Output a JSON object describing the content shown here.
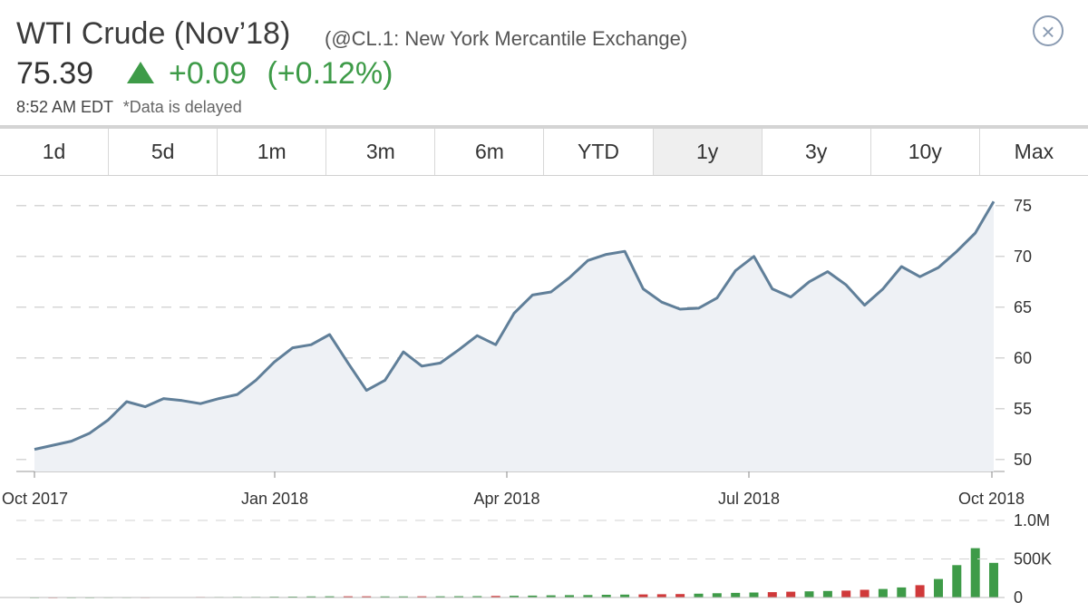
{
  "header": {
    "title": "WTI Crude (Nov’18)",
    "exchange": "(@CL.1: New York Mercantile Exchange)",
    "price": "75.39",
    "change": "+0.09",
    "change_pct": "(+0.12%)",
    "timestamp": "8:52 AM EDT",
    "delayed_note": "*Data is delayed",
    "up_color": "#3e9b48",
    "close_icon": "close-icon"
  },
  "tabs": [
    {
      "label": "1d"
    },
    {
      "label": "5d"
    },
    {
      "label": "1m"
    },
    {
      "label": "3m"
    },
    {
      "label": "6m"
    },
    {
      "label": "YTD"
    },
    {
      "label": "1y",
      "active": true
    },
    {
      "label": "3y"
    },
    {
      "label": "10y"
    },
    {
      "label": "Max"
    }
  ],
  "chart_data": [
    {
      "type": "area",
      "title": "",
      "xlabel": "",
      "ylabel": "",
      "line_color": "#607f99",
      "fill_color": "#eef1f5",
      "x_ticks": [
        "Oct 2017",
        "Jan 2018",
        "Apr 2018",
        "Jul 2018",
        "Oct 2018"
      ],
      "y_ticks": [
        50,
        55,
        60,
        65,
        70,
        75
      ],
      "ylim": [
        49,
        76.5
      ],
      "grid": "dashed-horizontal",
      "y_axis_position": "right",
      "x": [
        "2017-10-02",
        "2017-10-09",
        "2017-10-16",
        "2017-10-23",
        "2017-10-30",
        "2017-11-06",
        "2017-11-13",
        "2017-11-20",
        "2017-11-27",
        "2017-12-04",
        "2017-12-11",
        "2017-12-18",
        "2017-12-25",
        "2018-01-01",
        "2018-01-08",
        "2018-01-15",
        "2018-01-22",
        "2018-01-29",
        "2018-02-05",
        "2018-02-12",
        "2018-02-19",
        "2018-02-26",
        "2018-03-05",
        "2018-03-12",
        "2018-03-19",
        "2018-03-26",
        "2018-04-02",
        "2018-04-09",
        "2018-04-16",
        "2018-04-23",
        "2018-04-30",
        "2018-05-07",
        "2018-05-14",
        "2018-05-21",
        "2018-05-28",
        "2018-06-04",
        "2018-06-11",
        "2018-06-18",
        "2018-06-25",
        "2018-07-02",
        "2018-07-09",
        "2018-07-16",
        "2018-07-23",
        "2018-07-30",
        "2018-08-06",
        "2018-08-13",
        "2018-08-20",
        "2018-08-27",
        "2018-09-03",
        "2018-09-10",
        "2018-09-17",
        "2018-09-24",
        "2018-10-01"
      ],
      "series": [
        {
          "values": [
            51.0,
            51.4,
            51.8,
            52.6,
            53.9,
            55.7,
            55.2,
            56.0,
            55.8,
            55.5,
            56.0,
            56.4,
            57.8,
            59.6,
            61.0,
            61.3,
            62.3,
            59.5,
            56.8,
            57.8,
            60.6,
            59.2,
            59.5,
            60.8,
            62.2,
            61.3,
            64.4,
            66.2,
            66.5,
            67.9,
            69.6,
            70.2,
            70.5,
            66.8,
            65.5,
            64.8,
            64.9,
            65.9,
            68.6,
            70.0,
            66.8,
            66.0,
            67.5,
            68.5,
            67.2,
            65.2,
            66.8,
            69.0,
            68.0,
            68.9,
            70.5,
            72.3,
            75.4
          ]
        }
      ]
    },
    {
      "type": "bar",
      "title": "",
      "xlabel": "",
      "ylabel": "",
      "y_ticks": [
        "1.0M",
        "500K",
        "0"
      ],
      "ylim": [
        0,
        1000000
      ],
      "up_color": "#3e9b48",
      "down_color": "#d0393a",
      "x": [
        "2017-10-02",
        "2017-10-09",
        "2017-10-16",
        "2017-10-23",
        "2017-10-30",
        "2017-11-06",
        "2017-11-13",
        "2017-11-20",
        "2017-11-27",
        "2017-12-04",
        "2017-12-11",
        "2017-12-18",
        "2017-12-25",
        "2018-01-01",
        "2018-01-08",
        "2018-01-15",
        "2018-01-22",
        "2018-01-29",
        "2018-02-05",
        "2018-02-12",
        "2018-02-19",
        "2018-02-26",
        "2018-03-05",
        "2018-03-12",
        "2018-03-19",
        "2018-03-26",
        "2018-04-02",
        "2018-04-09",
        "2018-04-16",
        "2018-04-23",
        "2018-04-30",
        "2018-05-07",
        "2018-05-14",
        "2018-05-21",
        "2018-05-28",
        "2018-06-04",
        "2018-06-11",
        "2018-06-18",
        "2018-06-25",
        "2018-07-02",
        "2018-07-09",
        "2018-07-16",
        "2018-07-23",
        "2018-07-30",
        "2018-08-06",
        "2018-08-13",
        "2018-08-20",
        "2018-08-27",
        "2018-09-03",
        "2018-09-10",
        "2018-09-17",
        "2018-09-24",
        "2018-10-01"
      ],
      "values": [
        3000,
        3000,
        4000,
        4000,
        5000,
        5000,
        5000,
        6000,
        6000,
        7000,
        7000,
        8000,
        8000,
        10000,
        12000,
        14000,
        15000,
        15000,
        15000,
        14000,
        14000,
        15000,
        15000,
        16000,
        18000,
        20000,
        22000,
        25000,
        28000,
        30000,
        32000,
        35000,
        38000,
        40000,
        42000,
        45000,
        50000,
        55000,
        60000,
        65000,
        70000,
        75000,
        80000,
        85000,
        90000,
        100000,
        110000,
        130000,
        160000,
        240000,
        420000,
        640000,
        450000
      ],
      "direction": [
        "up",
        "down",
        "up",
        "up",
        "up",
        "up",
        "down",
        "up",
        "down",
        "down",
        "up",
        "up",
        "up",
        "up",
        "up",
        "up",
        "up",
        "down",
        "down",
        "up",
        "up",
        "down",
        "up",
        "up",
        "up",
        "down",
        "up",
        "up",
        "up",
        "up",
        "up",
        "up",
        "up",
        "down",
        "down",
        "down",
        "up",
        "up",
        "up",
        "up",
        "down",
        "down",
        "up",
        "up",
        "down",
        "down",
        "up",
        "up",
        "down",
        "up",
        "up",
        "up",
        "up"
      ]
    }
  ]
}
